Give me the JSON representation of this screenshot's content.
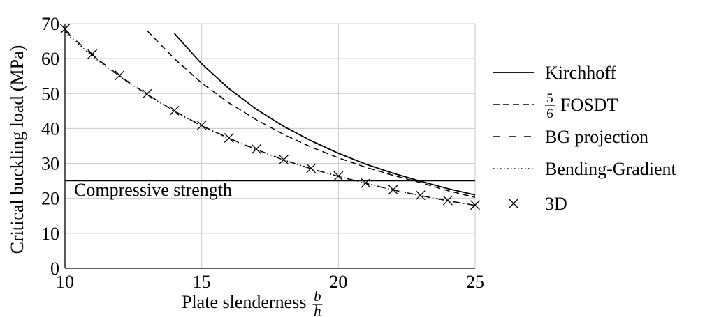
{
  "chart_data": {
    "type": "line",
    "title": "",
    "xlabel": "Plate slenderness",
    "xlabel_fraction": {
      "numerator": "b",
      "denominator": "h"
    },
    "ylabel": "Critical buckling load (MPa)",
    "xlim": [
      10,
      25
    ],
    "ylim": [
      0,
      70
    ],
    "x_ticks": [
      10,
      15,
      20,
      25
    ],
    "y_ticks": [
      0,
      10,
      20,
      30,
      40,
      50,
      60,
      70
    ],
    "grid": true,
    "legend_position": "right",
    "annotation": {
      "text": "Compressive strength",
      "y": 25
    },
    "series": [
      {
        "name": "Kirchhoff",
        "style": "solid",
        "x": [
          14,
          15,
          16,
          17,
          18,
          19,
          20,
          21,
          22,
          23,
          24,
          25
        ],
        "y": [
          67.2,
          58.5,
          51.4,
          45.5,
          40.6,
          36.5,
          32.9,
          29.8,
          27.2,
          24.9,
          22.8,
          21.0
        ]
      },
      {
        "name": "FOSDT",
        "name_fraction": {
          "numerator": "5",
          "denominator": "6"
        },
        "style": "dashed",
        "x": [
          13,
          14,
          15,
          16,
          17,
          18,
          19,
          20,
          21,
          22,
          23,
          24,
          25
        ],
        "y": [
          68.0,
          60.0,
          53.0,
          47.3,
          42.5,
          38.3,
          34.7,
          31.6,
          28.9,
          26.6,
          24.5,
          22.2,
          20.3
        ]
      },
      {
        "name": "BG projection",
        "style": "loose-dashed",
        "x": [
          10,
          11,
          12,
          13,
          14,
          15,
          16,
          17,
          18,
          19,
          20,
          21,
          22,
          23,
          24,
          25
        ],
        "y": [
          68.0,
          61.0,
          55.0,
          49.8,
          45.0,
          40.8,
          37.2,
          34.0,
          31.0,
          28.5,
          26.3,
          24.3,
          22.4,
          20.8,
          19.3,
          18.0
        ]
      },
      {
        "name": "Bending-Gradient",
        "style": "dotted",
        "x": [
          10,
          11,
          12,
          13,
          14,
          15,
          16,
          17,
          18,
          19,
          20,
          21,
          22,
          23,
          24,
          25
        ],
        "y": [
          67.5,
          60.7,
          54.8,
          49.7,
          44.9,
          40.7,
          37.1,
          33.9,
          31.0,
          28.5,
          26.3,
          24.3,
          22.4,
          20.8,
          19.3,
          18.0
        ]
      },
      {
        "name": "3D",
        "style": "markers",
        "x": [
          10,
          11,
          12,
          13,
          14,
          15,
          16,
          17,
          18,
          19,
          20,
          21,
          22,
          23,
          24,
          25
        ],
        "y": [
          68.5,
          61.3,
          55.2,
          49.9,
          45.1,
          40.9,
          37.3,
          34.1,
          31.1,
          28.6,
          26.4,
          24.4,
          22.5,
          20.9,
          19.4,
          18.1
        ]
      }
    ]
  }
}
